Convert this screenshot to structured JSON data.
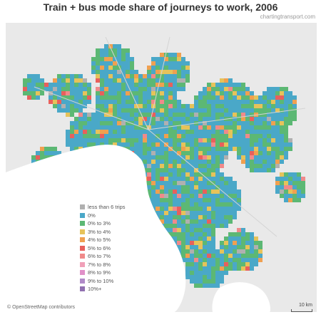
{
  "title": "Train + bus mode share of journeys to work, 2006",
  "source": "chartingtransport.com",
  "legend": {
    "items": [
      {
        "label": "less than 6 trips",
        "color": "#b0b0b0"
      },
      {
        "label": "0%",
        "color": "#4aa8c8"
      },
      {
        "label": "0% to 3%",
        "color": "#5cb874"
      },
      {
        "label": "3% to 4%",
        "color": "#e6c35a"
      },
      {
        "label": "4% to 5%",
        "color": "#f0a050"
      },
      {
        "label": "5% to 6%",
        "color": "#e8605c"
      },
      {
        "label": "6% to 7%",
        "color": "#f08a8a"
      },
      {
        "label": "7% to 8%",
        "color": "#f0a0b8"
      },
      {
        "label": "8% to 9%",
        "color": "#e090c8"
      },
      {
        "label": "9% to 10%",
        "color": "#b08ac8"
      },
      {
        "label": "10%+",
        "color": "#9070b0"
      }
    ]
  },
  "attribution": "© OpenStreetMap contributors",
  "scale_label": "10 km",
  "colors": {
    "water": "#ffffff",
    "land": "#e9e9e9"
  }
}
